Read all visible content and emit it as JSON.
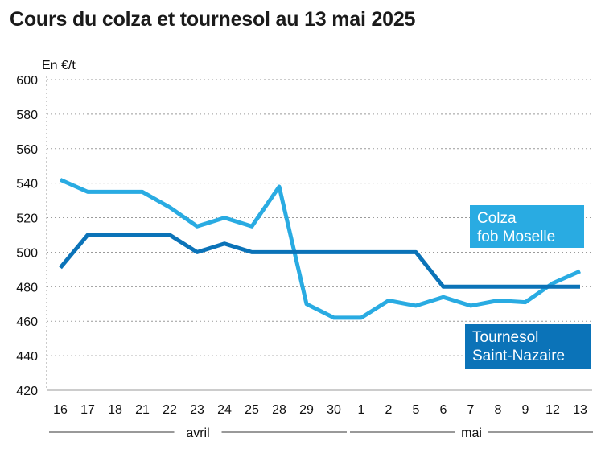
{
  "chart_data": {
    "type": "line",
    "title": "Cours du colza et tournesol au 13 mai 2025",
    "ylabel": "En €/t",
    "ylim": [
      420,
      600
    ],
    "yticks": [
      420,
      440,
      460,
      480,
      500,
      520,
      540,
      560,
      580,
      600
    ],
    "grid": "horizontal dashed",
    "categories": [
      "16",
      "17",
      "18",
      "21",
      "22",
      "23",
      "24",
      "25",
      "28",
      "29",
      "30",
      "1",
      "2",
      "5",
      "6",
      "7",
      "8",
      "9",
      "12",
      "13"
    ],
    "month_groups": [
      {
        "label": "avril",
        "from": 0,
        "to": 10
      },
      {
        "label": "mai",
        "from": 11,
        "to": 19
      }
    ],
    "series": [
      {
        "name": [
          "Colza",
          "fob Moselle"
        ],
        "color": "#29abe2",
        "label_bg": "#29abe2",
        "values": [
          542,
          535,
          535,
          535,
          526,
          515,
          520,
          515,
          538,
          470,
          462,
          462,
          472,
          469,
          474,
          469,
          472,
          471,
          482,
          489
        ]
      },
      {
        "name": [
          "Tournesol",
          "Saint-Nazaire"
        ],
        "color": "#0b73b8",
        "label_bg": "#0b73b8",
        "values": [
          491,
          510,
          510,
          510,
          510,
          500,
          505,
          500,
          500,
          500,
          500,
          500,
          500,
          500,
          480,
          480,
          480,
          480,
          480,
          480
        ]
      }
    ]
  }
}
